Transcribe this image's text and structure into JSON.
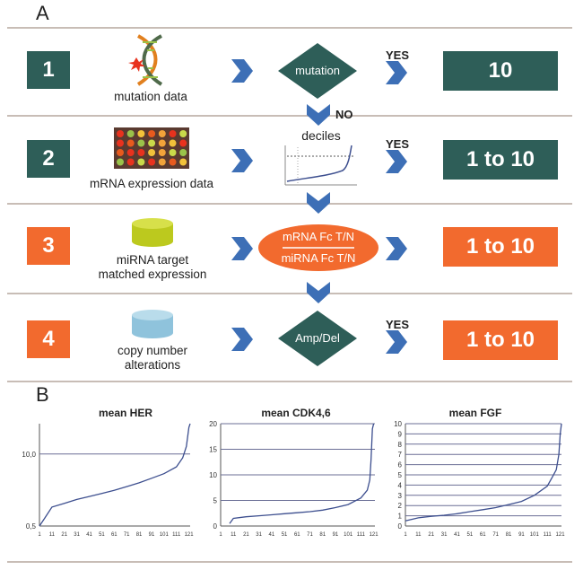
{
  "panel_a": {
    "letter": "A",
    "rows": [
      {
        "number": "1",
        "label": "mutation data",
        "decision": "mutation",
        "yes": "YES",
        "result": "10"
      },
      {
        "number": "2",
        "label": "mRNA expression data",
        "decision": "deciles",
        "yes": "YES",
        "result": "1 to 10"
      },
      {
        "number": "3",
        "label_line1": "miRNA target",
        "label_line2": "matched expression",
        "decision_top": "mRNA Fc T/N",
        "decision_bottom": "miRNA Fc T/N",
        "result": "1 to 10"
      },
      {
        "number": "4",
        "label_line1": "copy number",
        "label_line2": "alterations",
        "decision": "Amp/Del",
        "yes": "YES",
        "result": "1 to 10"
      }
    ],
    "no_label": "NO",
    "colors": {
      "green": "#2e5e58",
      "orange": "#f26a2e",
      "arrow": "#3d6fb6"
    }
  },
  "panel_b": {
    "letter": "B",
    "x_ticks": [
      "1",
      "11",
      "21",
      "31",
      "41",
      "51",
      "61",
      "71",
      "81",
      "91",
      "101",
      "111",
      "121"
    ],
    "chart_data": [
      {
        "type": "line",
        "title": "mean HER",
        "y_tick_labels": [
          "0,5",
          "10,0"
        ],
        "ylim": [
          0.5,
          14
        ],
        "reference_line": 10.0,
        "series": [
          {
            "x": [
              1,
              5,
              11,
              21,
              31,
              41,
              51,
              61,
              71,
              81,
              91,
              101,
              111,
              116,
              119,
              121,
              122
            ],
            "values": [
              0.5,
              1.5,
              3,
              3.5,
              4,
              4.4,
              4.8,
              5.2,
              5.7,
              6.2,
              6.8,
              7.4,
              8.3,
              9.5,
              11,
              13.5,
              14
            ]
          }
        ]
      },
      {
        "type": "line",
        "title": "mean CDK4,6",
        "y_tick_labels": [
          "0",
          "5",
          "10",
          "15",
          "20"
        ],
        "ylim": [
          0,
          20
        ],
        "series": [
          {
            "x": [
              8,
              11,
              21,
              31,
              41,
              51,
              61,
              71,
              81,
              91,
              101,
              111,
              116,
              118,
              119,
              120,
              121
            ],
            "values": [
              0.5,
              1.5,
              1.8,
              2,
              2.2,
              2.4,
              2.6,
              2.8,
              3.1,
              3.6,
              4.2,
              5.5,
              7,
              9,
              13,
              19,
              20
            ]
          }
        ]
      },
      {
        "type": "line",
        "title": "mean FGF",
        "y_tick_labels": [
          "0",
          "1",
          "2",
          "3",
          "4",
          "5",
          "6",
          "7",
          "8",
          "9",
          "10"
        ],
        "ylim": [
          0,
          10
        ],
        "series": [
          {
            "x": [
              1,
              11,
              21,
              31,
              41,
              51,
              61,
              71,
              81,
              91,
              101,
              111,
              115,
              118,
              120,
              121,
              122
            ],
            "values": [
              0.5,
              0.8,
              0.95,
              1.05,
              1.2,
              1.4,
              1.6,
              1.8,
              2.1,
              2.4,
              3,
              3.9,
              4.8,
              5.5,
              7,
              9,
              10
            ]
          }
        ]
      }
    ]
  }
}
